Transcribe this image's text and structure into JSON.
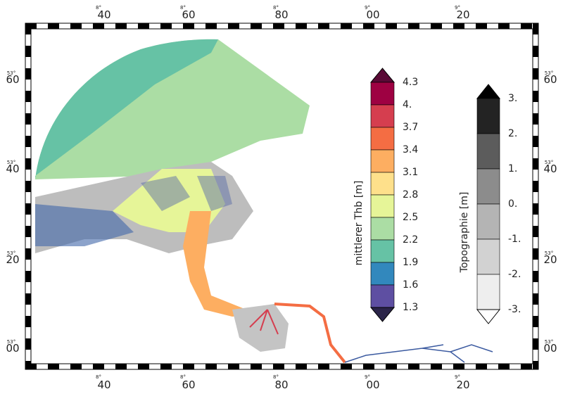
{
  "x_axis": {
    "labels": [
      "40",
      "60",
      "80",
      "00",
      "20"
    ],
    "sublabels": [
      "8°",
      "8°",
      "8°",
      "9°",
      "9°"
    ]
  },
  "y_axis": {
    "labels": [
      "60",
      "40",
      "20",
      "00"
    ],
    "sublabels": [
      "53°",
      "53°",
      "53°",
      "53°"
    ]
  },
  "colorbar_thb": {
    "title": "mittlerer Thb [m]",
    "labels": [
      "4.3",
      "4.",
      "3.7",
      "3.4",
      "3.1",
      "2.8",
      "2.5",
      "2.2",
      "1.9",
      "1.6",
      "1.3"
    ],
    "colors": [
      "#9e0142",
      "#d53e4f",
      "#f46d43",
      "#fdae61",
      "#fee08b",
      "#e6f598",
      "#abdda4",
      "#66c2a5",
      "#3288bd",
      "#5e4fa2"
    ],
    "over_color": "#5a0a36",
    "under_color": "#2b2449"
  },
  "colorbar_topo": {
    "title": "Topographie [m]",
    "labels": [
      "3.",
      "2.",
      "1.",
      "0.",
      "-1.",
      "-2.",
      "-3."
    ],
    "colors": [
      "#232323",
      "#5c5c5c",
      "#8c8c8c",
      "#b4b4b4",
      "#d2d2d2",
      "#eeeeee"
    ],
    "over_color": "#000000",
    "under_color": "#ffffff"
  }
}
